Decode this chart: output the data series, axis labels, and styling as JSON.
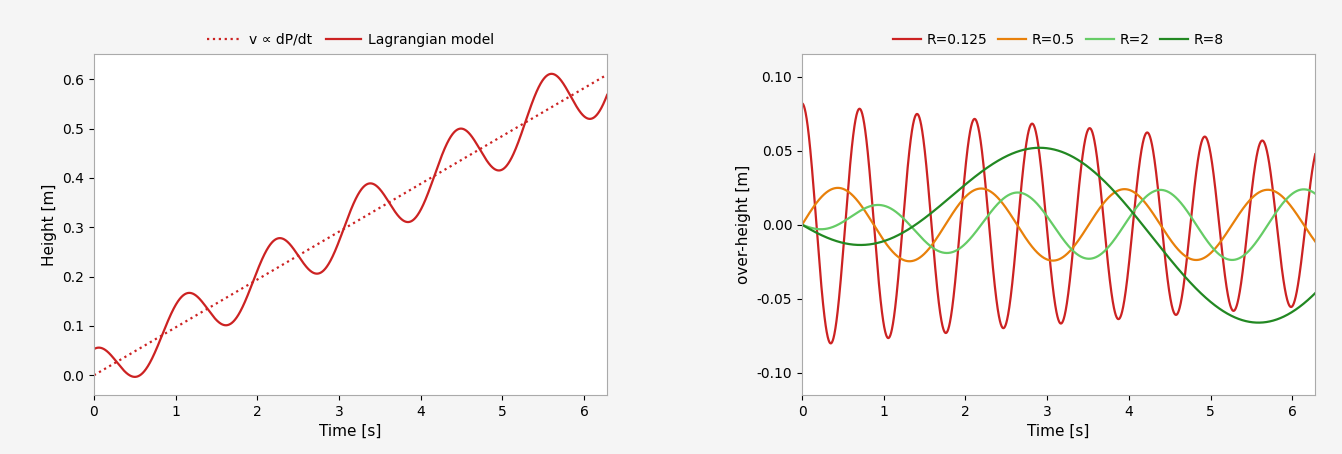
{
  "left_plot": {
    "xlabel": "Time [s]",
    "ylabel": "Height [m]",
    "xlim": [
      0,
      6.28
    ],
    "ylim": [
      -0.04,
      0.65
    ],
    "yticks": [
      0.0,
      0.1,
      0.2,
      0.3,
      0.4,
      0.5,
      0.6
    ],
    "xticks": [
      0,
      1,
      2,
      3,
      4,
      5,
      6
    ],
    "trend_color": "#cc2222",
    "solid_color": "#cc2222",
    "legend_labels": [
      "v ∝ dP/dt",
      "Lagrangian model"
    ],
    "slope": 0.097,
    "osc_amp": 0.053,
    "osc_freq": 0.9,
    "osc_phi": 1.5707963
  },
  "right_plot": {
    "xlabel": "Time [s]",
    "ylabel": "over-height [m]",
    "xlim": [
      0,
      6.28
    ],
    "ylim": [
      -0.115,
      0.115
    ],
    "yticks": [
      -0.1,
      -0.05,
      0.0,
      0.05,
      0.1
    ],
    "xticks": [
      0,
      1,
      2,
      3,
      4,
      5,
      6
    ],
    "series": [
      {
        "label": "R=0.125",
        "color": "#cc2222",
        "amp": 0.082,
        "freq": 1.42,
        "phi": 1.5707963,
        "decay": 0.065,
        "env_grow": false,
        "env_tau": 0.0
      },
      {
        "label": "R=0.5",
        "color": "#e8800a",
        "amp": 0.025,
        "freq": 0.57,
        "phi": 0.0,
        "decay": 0.01,
        "env_grow": false,
        "env_tau": 0.0
      },
      {
        "label": "R=2",
        "color": "#66cc66",
        "amp": 0.024,
        "freq": 0.57,
        "phi": -1.5707963,
        "decay": 0.0,
        "env_grow": true,
        "env_tau": 0.9
      },
      {
        "label": "R=8",
        "color": "#228822",
        "amp": 0.072,
        "freq": 0.18,
        "phi": -1.5707963,
        "decay": 0.0,
        "env_grow": true,
        "env_tau": 0.45
      }
    ]
  },
  "fig_bg_color": "#f5f5f5",
  "axes_bg_color": "#ffffff",
  "spine_color": "#aaaaaa",
  "tick_label_size": 10,
  "axis_label_size": 11,
  "legend_fontsize": 10,
  "linewidth": 1.6
}
